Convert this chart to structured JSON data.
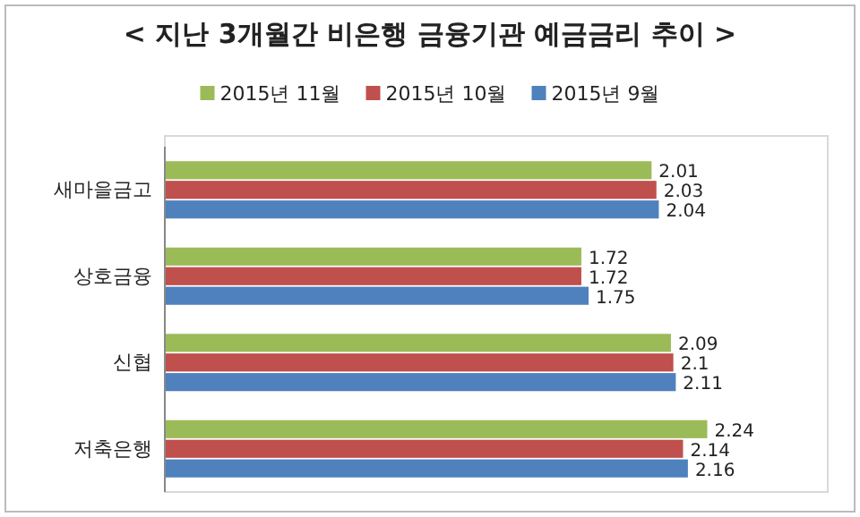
{
  "chart_data": {
    "type": "bar",
    "orientation": "horizontal",
    "title": "< 지난 3개월간 비은행 금융기관 예금금리 추이 >",
    "categories": [
      "새마을금고",
      "상호금융",
      "신협",
      "저축은행"
    ],
    "series": [
      {
        "name": "2015년 11월",
        "color": "#9bbb59",
        "values": [
          2.01,
          1.72,
          2.09,
          2.24
        ]
      },
      {
        "name": "2015년 10월",
        "color": "#c0504d",
        "values": [
          2.03,
          1.72,
          2.1,
          2.14
        ]
      },
      {
        "name": "2015년 9월",
        "color": "#4f81bd",
        "values": [
          2.04,
          1.75,
          2.11,
          2.16
        ]
      }
    ],
    "data_labels": true,
    "legend": "top",
    "tick_labels": "y"
  }
}
